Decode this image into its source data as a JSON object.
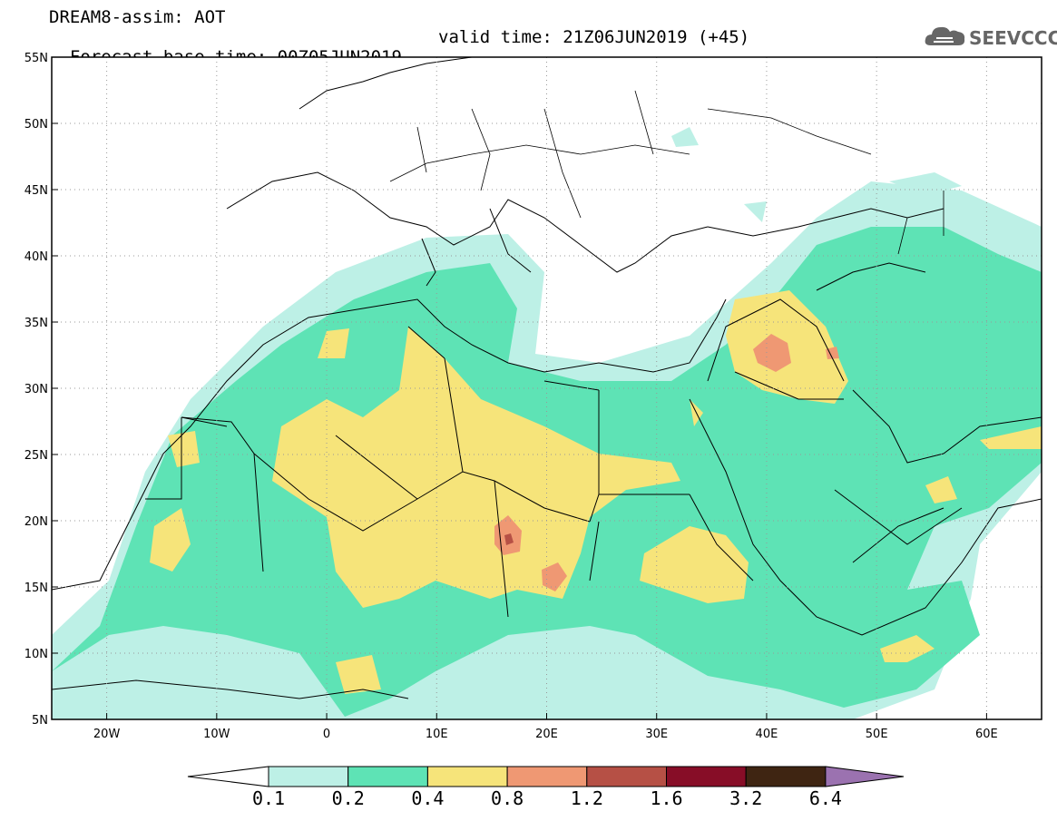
{
  "header": {
    "line1": "DREAM8-assim: AOT",
    "base_time_label": "Forecast base time: 00Z05JUN2019",
    "valid_time_label": "valid time: 21Z06JUN2019 (+45)"
  },
  "logo": {
    "text": "SEEVCCC",
    "icon": "cloud-icon"
  },
  "map": {
    "lon_range": [
      -25,
      65
    ],
    "lat_range": [
      5,
      55
    ],
    "lat_ticks": [
      "5N",
      "10N",
      "15N",
      "20N",
      "25N",
      "30N",
      "35N",
      "40N",
      "45N",
      "50N",
      "55N"
    ],
    "lon_ticks": [
      "20W",
      "10W",
      "0",
      "10E",
      "20E",
      "30E",
      "40E",
      "50E",
      "60E"
    ],
    "grid": "dotted"
  },
  "colorbar": {
    "levels": [
      "0.1",
      "0.2",
      "0.4",
      "0.8",
      "1.2",
      "1.6",
      "3.2",
      "6.4"
    ],
    "colors": [
      "#ffffff",
      "#bdf0e6",
      "#5ee3b5",
      "#f6e47a",
      "#ef9873",
      "#b65045",
      "#870d27",
      "#3f2512",
      "#9b72b0"
    ]
  }
}
